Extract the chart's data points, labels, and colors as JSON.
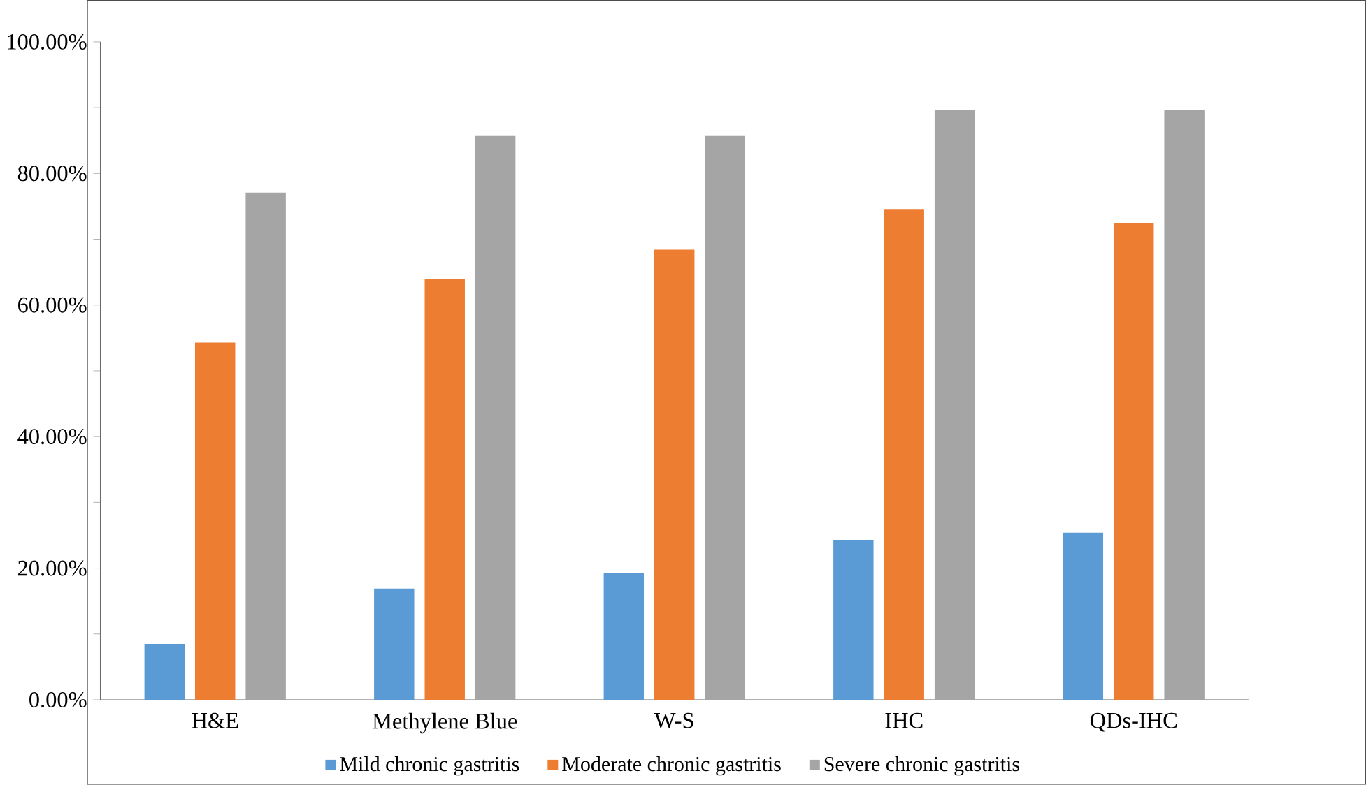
{
  "chart_data": {
    "type": "bar",
    "categories": [
      "H&E",
      "Methylene Blue",
      "W-S",
      "IHC",
      "QDs-IHC"
    ],
    "series": [
      {
        "name": "Mild chronic gastritis",
        "color": "#5b9bd5",
        "values": [
          8.5,
          16.9,
          19.3,
          24.3,
          25.4
        ]
      },
      {
        "name": "Moderate chronic gastritis",
        "color": "#ed7d31",
        "values": [
          54.3,
          64.0,
          68.4,
          74.6,
          72.4
        ]
      },
      {
        "name": "Severe chronic gastritis",
        "color": "#a5a5a5",
        "values": [
          77.1,
          85.7,
          85.7,
          89.7,
          89.7
        ]
      }
    ],
    "ylim": [
      0,
      100
    ],
    "yticks": [
      {
        "value": 0,
        "label": "0.00%"
      },
      {
        "value": 10,
        "label": null
      },
      {
        "value": 20,
        "label": "20.00%"
      },
      {
        "value": 30,
        "label": null
      },
      {
        "value": 40,
        "label": "40.00%"
      },
      {
        "value": 50,
        "label": null
      },
      {
        "value": 60,
        "label": "60.00%"
      },
      {
        "value": 70,
        "label": null
      },
      {
        "value": 80,
        "label": "80.00%"
      },
      {
        "value": 90,
        "label": null
      },
      {
        "value": 100,
        "label": "100.00%"
      }
    ],
    "grid": false,
    "legend": "bottom"
  }
}
